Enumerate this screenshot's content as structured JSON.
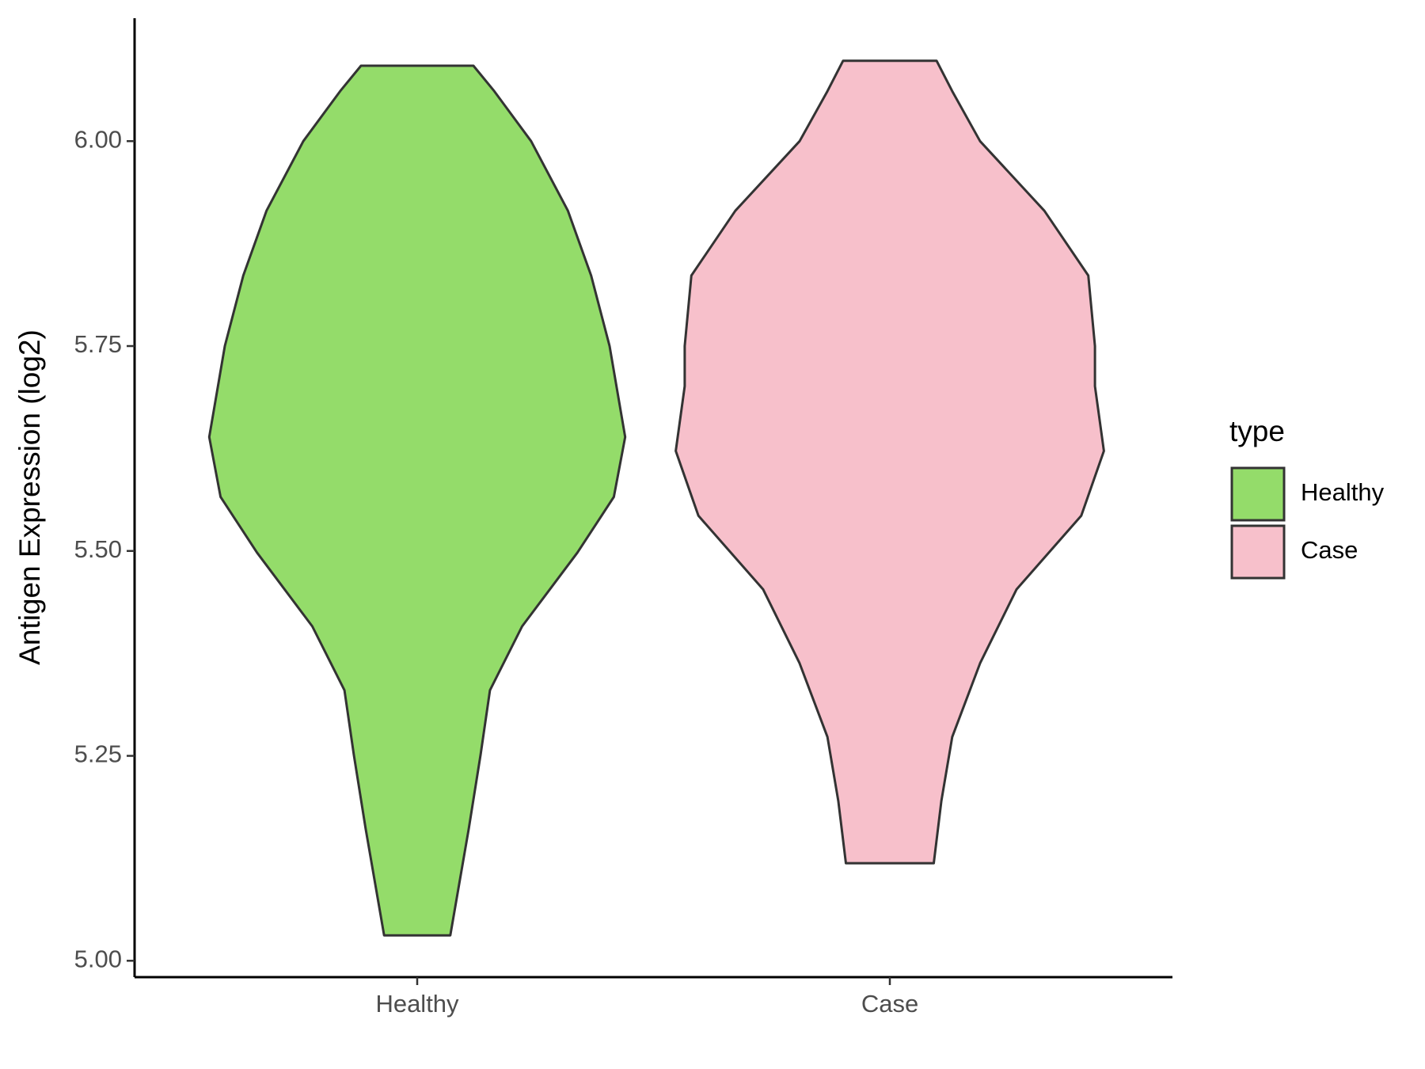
{
  "chart_data": {
    "type": "violin",
    "y_label": "Antigen Expression (log2)",
    "categories": [
      "Healthy",
      "Case"
    ],
    "violins": [
      {
        "name": "Healthy",
        "color": "#94dc6a",
        "y": [
          6.092,
          6.061,
          6.0,
          5.915,
          5.836,
          5.75,
          5.639,
          5.566,
          5.498,
          5.408,
          5.33,
          5.251,
          5.161,
          5.031
        ],
        "half_width": [
          0.119,
          0.163,
          0.241,
          0.319,
          0.368,
          0.407,
          0.44,
          0.416,
          0.339,
          0.222,
          0.154,
          0.134,
          0.109,
          0.07
        ]
      },
      {
        "name": "Case",
        "color": "#f7c0cb",
        "y": [
          6.098,
          6.061,
          6.0,
          5.915,
          5.836,
          5.75,
          5.701,
          5.622,
          5.543,
          5.453,
          5.363,
          5.273,
          5.195,
          5.119
        ],
        "half_width": [
          0.099,
          0.132,
          0.191,
          0.327,
          0.42,
          0.434,
          0.434,
          0.453,
          0.405,
          0.268,
          0.191,
          0.132,
          0.109,
          0.093
        ]
      }
    ],
    "ylim": [
      4.98,
      6.15
    ],
    "yticks": [
      {
        "value": 5,
        "label": "5.00"
      },
      {
        "value": 5.25,
        "label": "5.25"
      },
      {
        "value": 5.5,
        "label": "5.50"
      },
      {
        "value": 5.75,
        "label": "5.75"
      },
      {
        "value": 6,
        "label": "6.00"
      }
    ],
    "legend_title": "type",
    "legend_position": "right"
  }
}
